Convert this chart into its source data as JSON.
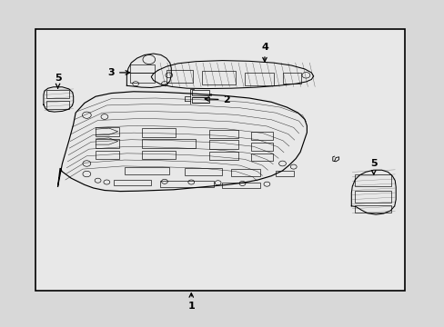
{
  "background_color": "#d8d8d8",
  "box_facecolor": "#e8e8e8",
  "line_color": "#000000",
  "fig_width": 4.89,
  "fig_height": 3.6,
  "dpi": 100,
  "border": [
    0.08,
    0.11,
    0.91,
    0.91
  ],
  "label_fontsize": 8
}
